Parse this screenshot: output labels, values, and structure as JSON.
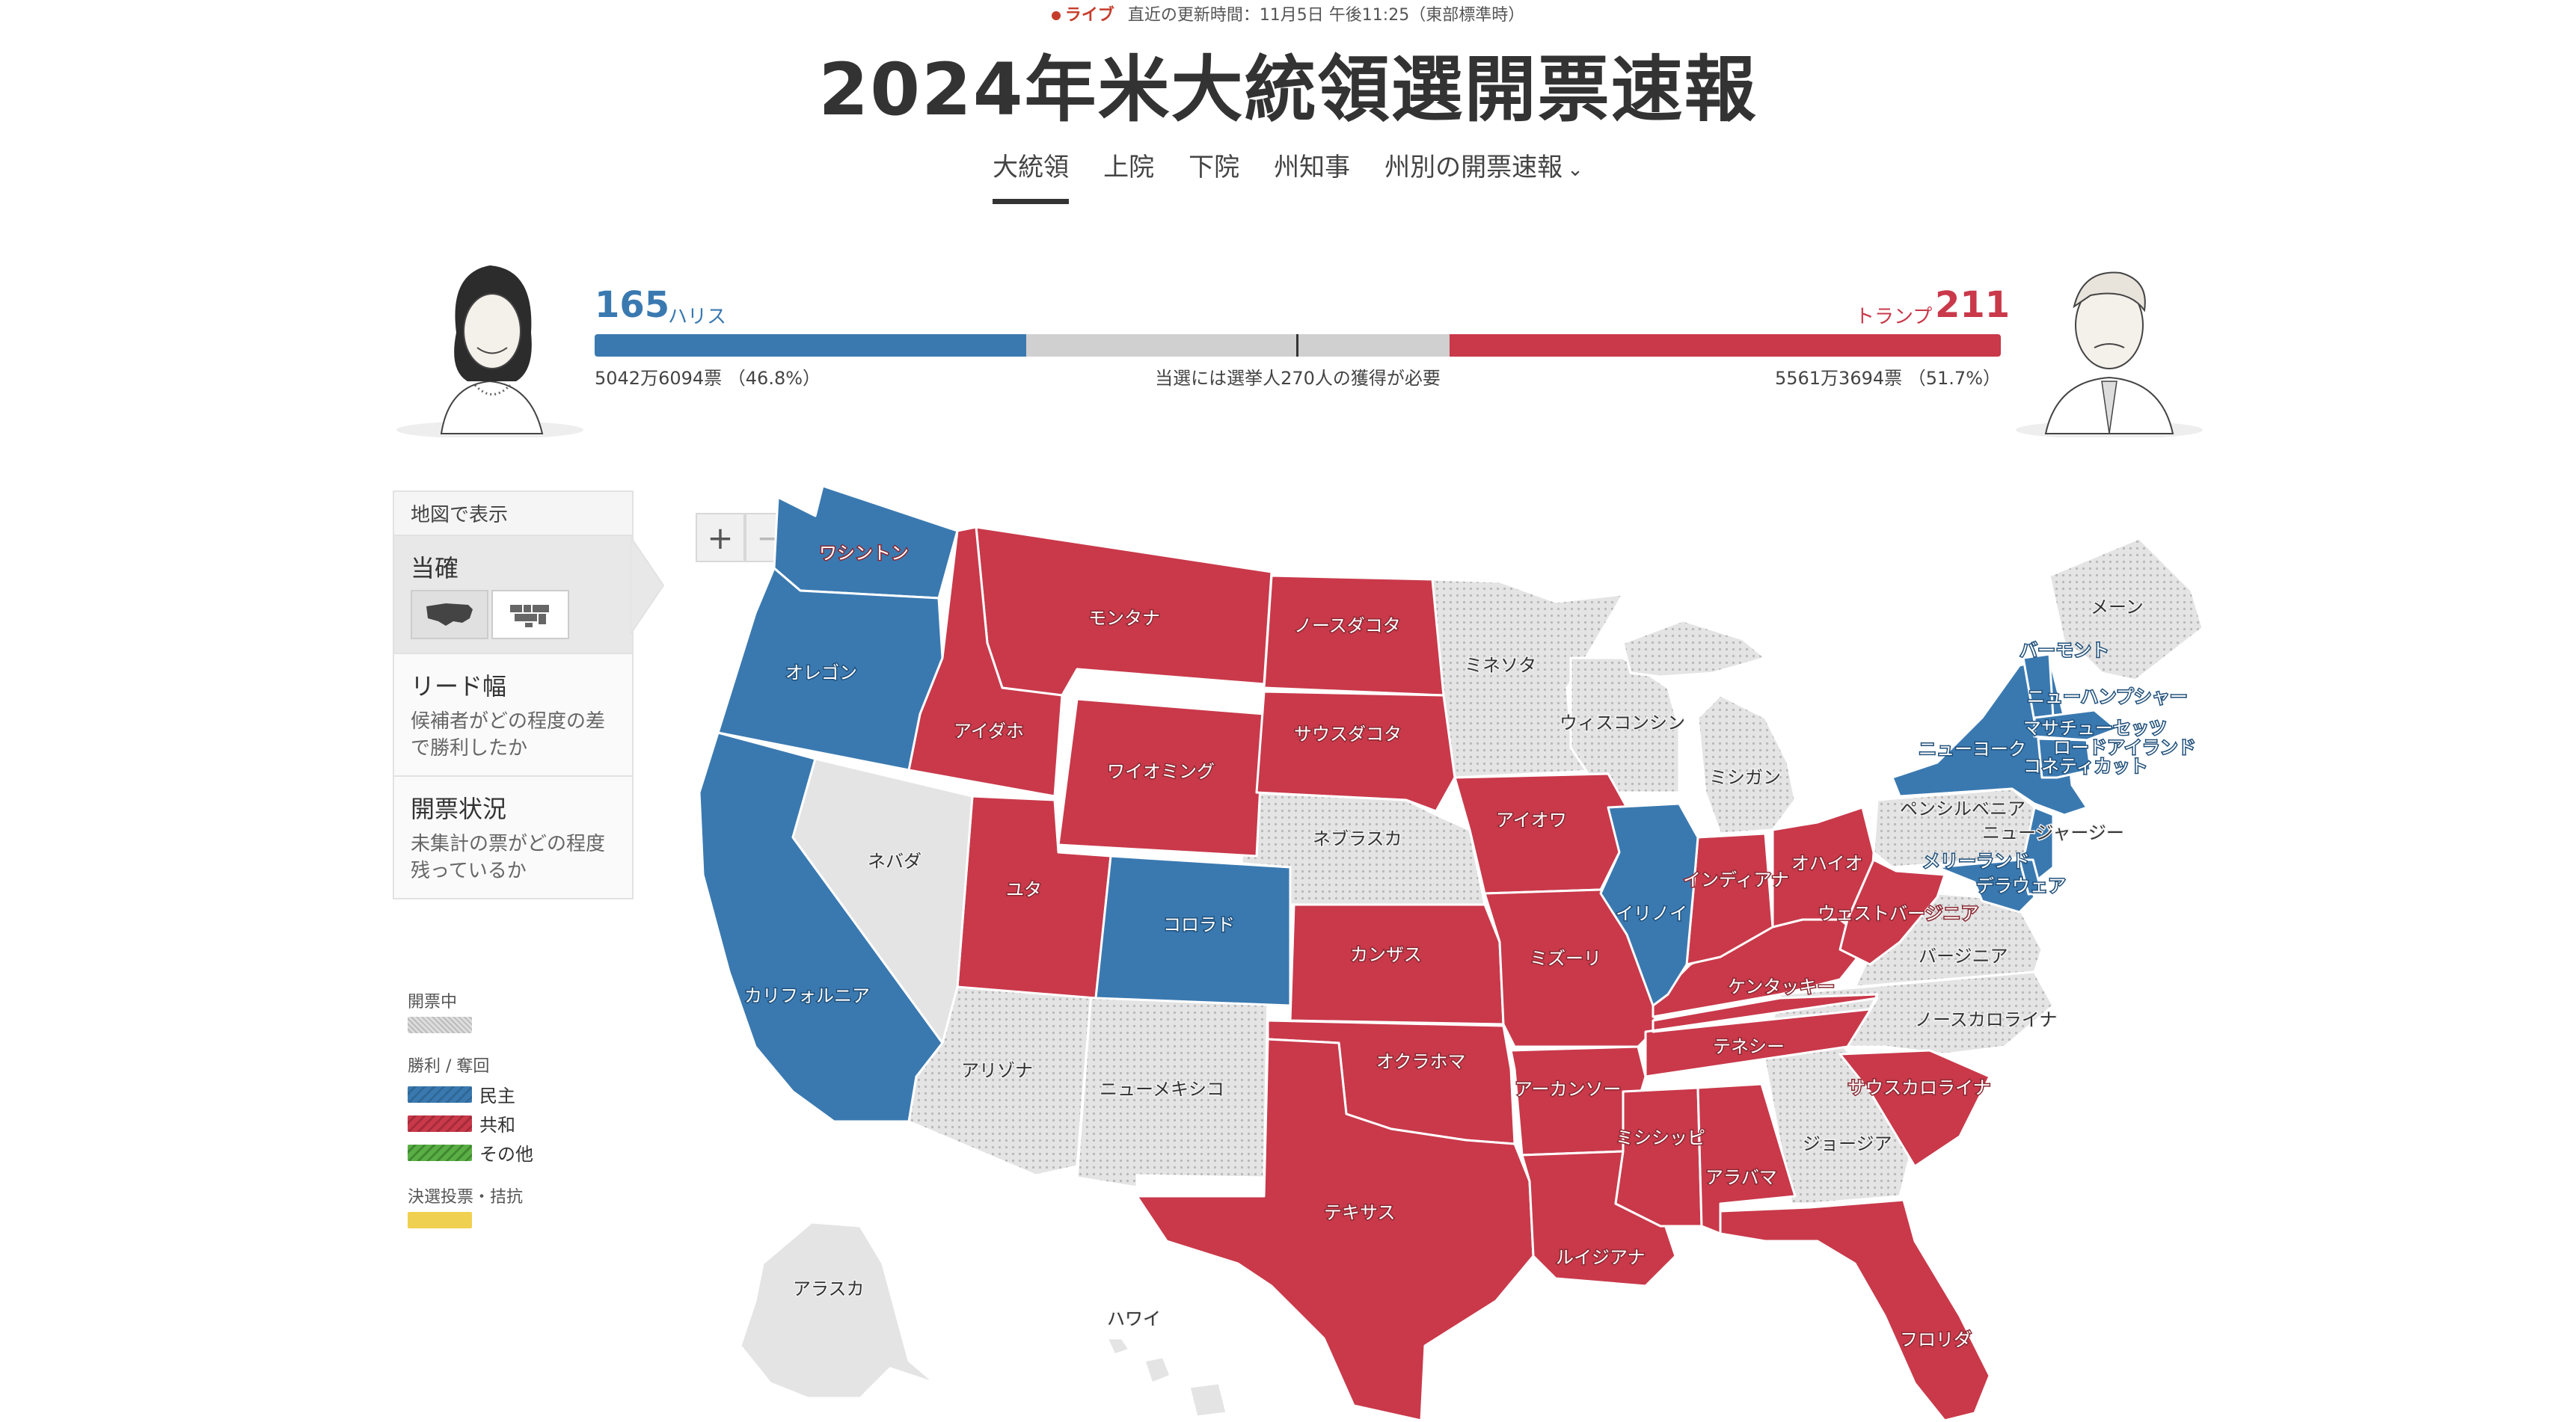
{
  "header": {
    "live_label": "ライブ",
    "update_text": "直近の更新時間：11月5日 午後11:25（東部標準時）",
    "title": "2024年米大統領選開票速報"
  },
  "tabs": [
    {
      "label": "大統領",
      "active": true
    },
    {
      "label": "上院",
      "active": false
    },
    {
      "label": "下院",
      "active": false
    },
    {
      "label": "州知事",
      "active": false
    },
    {
      "label": "州別の開票速報",
      "active": false
    }
  ],
  "tally": {
    "dem": {
      "electors": "165",
      "name": "ハリス",
      "votes": "5042万6094票 （46.8%）",
      "color": "#3a79b0"
    },
    "rep": {
      "electors": "211",
      "name": "トランプ",
      "votes": "5561万3694票 （51.7%）",
      "color": "#c9394a"
    },
    "note": "当選には選挙人270人の獲得が必要",
    "total_electors": 538,
    "threshold": 270
  },
  "panel": {
    "header": "地図で表示",
    "sections": [
      {
        "title": "当確",
        "desc": "",
        "active": true
      },
      {
        "title": "リード幅",
        "desc": "候補者がどの程度の差で勝利したか",
        "active": false
      },
      {
        "title": "開票状況",
        "desc": "未集計の票がどの程度残っているか",
        "active": false
      }
    ]
  },
  "legend": {
    "counting": "開票中",
    "win_title": "勝利 / 奪回",
    "dem": "民主",
    "rep": "共和",
    "other": "その他",
    "runoff": "決選投票・拮抗"
  },
  "colors": {
    "dem": "#3a79b0",
    "rep": "#c9394a",
    "other": "#5aae45",
    "runoff": "#f0d050",
    "pending": "#e4e4e4"
  },
  "zoom": {
    "in": "+",
    "out": "−"
  },
  "states": {
    "wa": "ワシントン",
    "or": "オレゴン",
    "ca": "カリフォルニア",
    "nv": "ネバダ",
    "id": "アイダホ",
    "mt": "モンタナ",
    "wy": "ワイオミング",
    "ut": "ユタ",
    "co": "コロラド",
    "az": "アリゾナ",
    "nm": "ニューメキシコ",
    "nd": "ノースダコタ",
    "sd": "サウスダコタ",
    "ne": "ネブラスカ",
    "ks": "カンザス",
    "ok": "オクラホマ",
    "tx": "テキサス",
    "mn": "ミネソタ",
    "ia": "アイオワ",
    "mo": "ミズーリ",
    "ar": "アーカンソー",
    "la": "ルイジアナ",
    "wi": "ウィスコンシン",
    "il": "イリノイ",
    "mi": "ミシガン",
    "in": "インディアナ",
    "oh": "オハイオ",
    "ky": "ケンタッキー",
    "tn": "テネシー",
    "ms": "ミシシッピ",
    "al": "アラバマ",
    "ga": "ジョージア",
    "fl": "フロリダ",
    "sc": "サウスカロライナ",
    "nc": "ノースカロライナ",
    "va": "バージニア",
    "wv": "ウェストバージニア",
    "pa": "ペンシルベニア",
    "ny": "ニューヨーク",
    "vt": "バーモント",
    "nh": "ニューハンプシャー",
    "me": "メーン",
    "ma": "マサチューセッツ",
    "ri": "ロードアイランド",
    "ct": "コネティカット",
    "nj": "ニュージャージー",
    "de": "デラウェア",
    "md": "メリーランド",
    "ak": "アラスカ",
    "hi": "ハワイ"
  }
}
